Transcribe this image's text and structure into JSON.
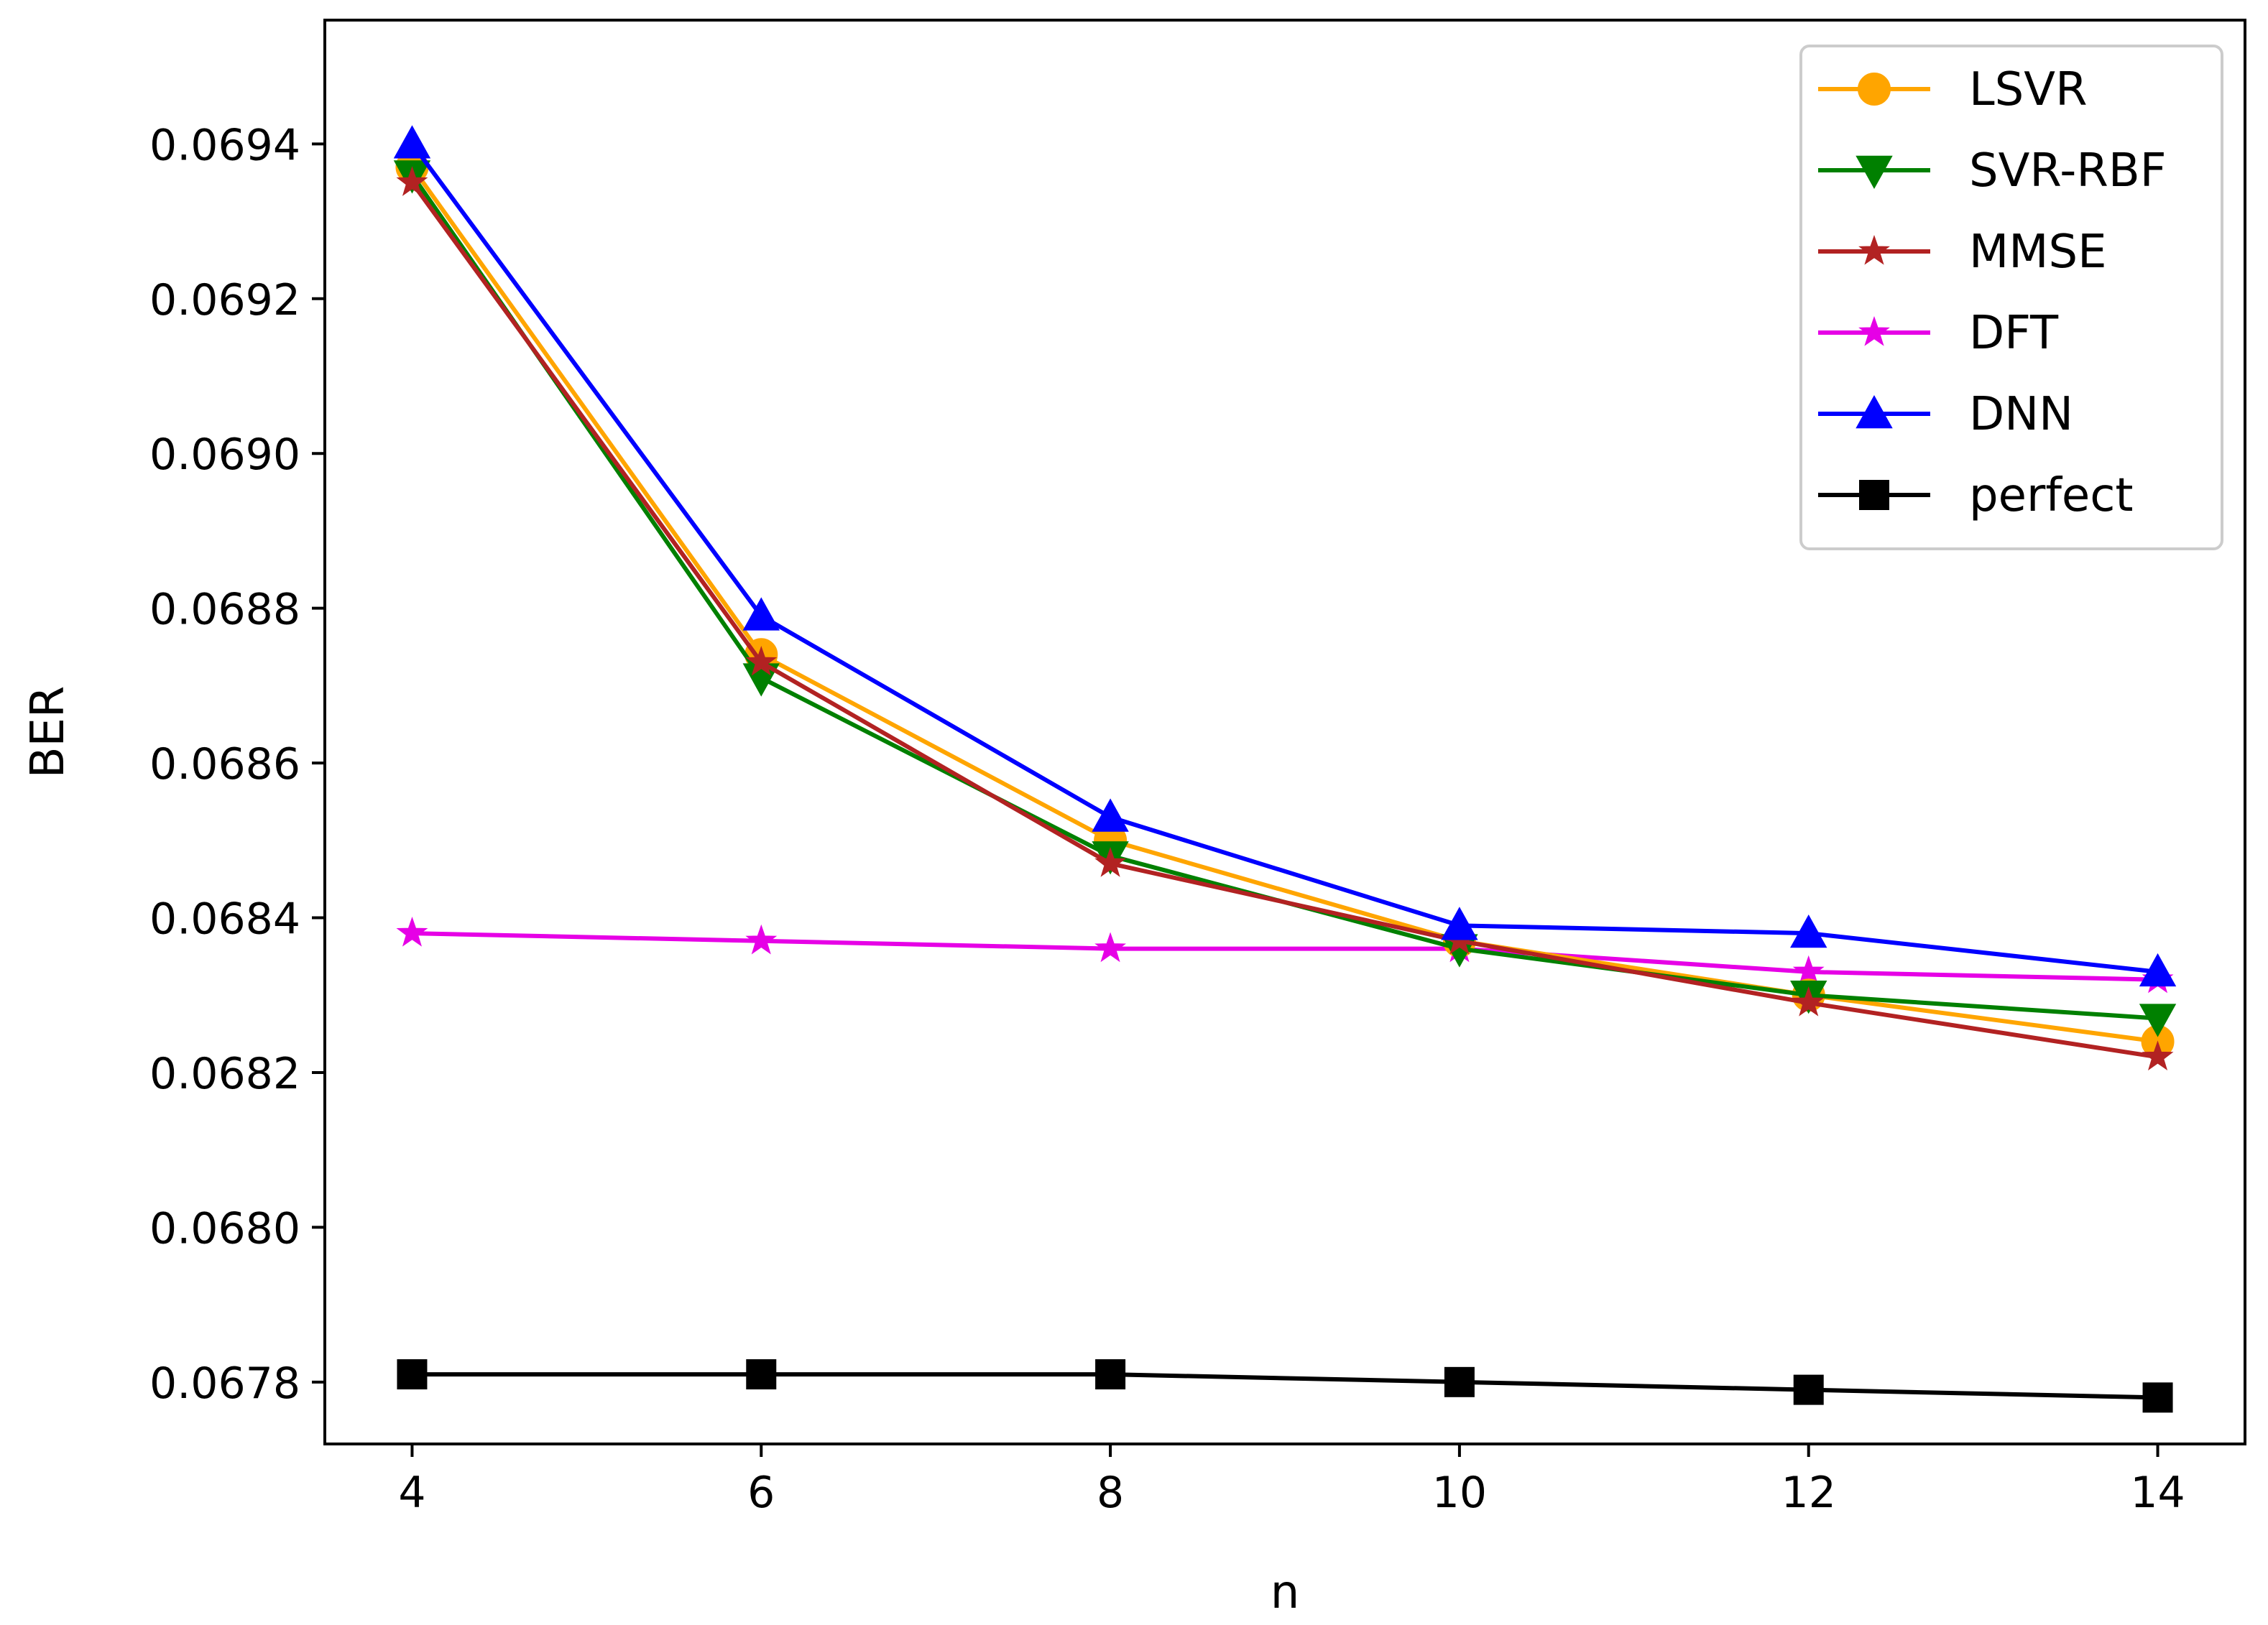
{
  "chart_data": {
    "type": "line",
    "title": "",
    "xlabel": "n",
    "ylabel": "BER",
    "x": [
      4,
      6,
      8,
      10,
      12,
      14
    ],
    "xticks": [
      "4",
      "6",
      "8",
      "10",
      "12",
      "14"
    ],
    "yticks": [
      "0.0678",
      "0.0680",
      "0.0682",
      "0.0684",
      "0.0686",
      "0.0688",
      "0.0690",
      "0.0692",
      "0.0694"
    ],
    "ytick_values": [
      0.0678,
      0.068,
      0.0682,
      0.0684,
      0.0686,
      0.0688,
      0.069,
      0.0692,
      0.0694
    ],
    "xlim": [
      3.5,
      14.5
    ],
    "ylim": [
      0.06772,
      0.06956
    ],
    "grid": false,
    "legend_position": "top-right",
    "series": [
      {
        "name": "LSVR",
        "color": "#FFA500",
        "marker": "circle",
        "values": [
          0.06937,
          0.06874,
          0.0685,
          0.06837,
          0.0683,
          0.06824
        ]
      },
      {
        "name": "SVR-RBF",
        "color": "#008000",
        "marker": "triangle-down",
        "values": [
          0.06936,
          0.06871,
          0.06848,
          0.06836,
          0.0683,
          0.06827
        ]
      },
      {
        "name": "MMSE",
        "color": "#B22222",
        "marker": "star",
        "values": [
          0.06935,
          0.06873,
          0.06847,
          0.06837,
          0.06829,
          0.06822
        ]
      },
      {
        "name": "DFT",
        "color": "#E600E6",
        "marker": "star",
        "values": [
          0.06838,
          0.06837,
          0.06836,
          0.06836,
          0.06833,
          0.06832
        ]
      },
      {
        "name": "DNN",
        "color": "#0000FF",
        "marker": "triangle-up",
        "values": [
          0.0694,
          0.06879,
          0.06853,
          0.06839,
          0.06838,
          0.06833
        ]
      },
      {
        "name": "perfect",
        "color": "#000000",
        "marker": "square",
        "values": [
          0.06781,
          0.06781,
          0.06781,
          0.0678,
          0.06779,
          0.06778
        ]
      }
    ]
  }
}
